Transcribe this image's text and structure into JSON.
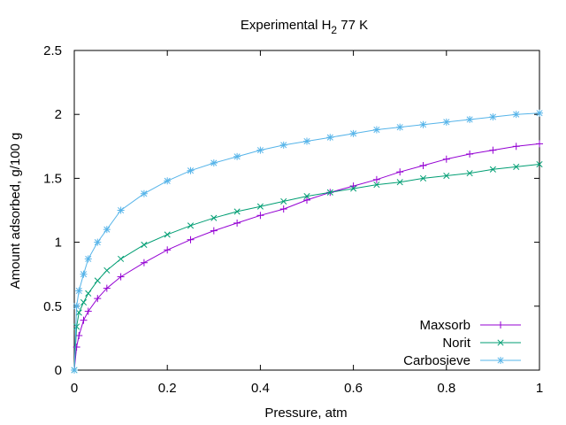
{
  "chart_data": {
    "type": "line",
    "title": "Experimental H",
    "title_sub": "2",
    "title_rest": " 77 K",
    "xlabel": "Pressure, atm",
    "ylabel": "Amount adsorbed, g/100 g",
    "xlim": [
      0,
      1
    ],
    "ylim": [
      0,
      2.5
    ],
    "xticks": [
      "0",
      "0.2",
      "0.4",
      "0.6",
      "0.8",
      "1"
    ],
    "yticks": [
      "0",
      "0.5",
      "1",
      "1.5",
      "2",
      "2.5"
    ],
    "grid": false,
    "legend_position": "bottom-right",
    "series": [
      {
        "name": "Maxsorb",
        "color": "#9400d3",
        "marker": "plus",
        "x": [
          0.0,
          0.005,
          0.01,
          0.02,
          0.03,
          0.05,
          0.07,
          0.1,
          0.15,
          0.2,
          0.25,
          0.3,
          0.35,
          0.4,
          0.45,
          0.5,
          0.55,
          0.6,
          0.65,
          0.7,
          0.75,
          0.8,
          0.85,
          0.9,
          0.95,
          1.0
        ],
        "y": [
          0.0,
          0.18,
          0.27,
          0.39,
          0.46,
          0.56,
          0.64,
          0.73,
          0.84,
          0.94,
          1.02,
          1.09,
          1.15,
          1.21,
          1.26,
          1.33,
          1.39,
          1.44,
          1.49,
          1.55,
          1.6,
          1.65,
          1.69,
          1.72,
          1.75,
          1.77
        ]
      },
      {
        "name": "Norit",
        "color": "#009e73",
        "marker": "cross",
        "x": [
          0.0,
          0.005,
          0.01,
          0.02,
          0.03,
          0.05,
          0.07,
          0.1,
          0.15,
          0.2,
          0.25,
          0.3,
          0.35,
          0.4,
          0.45,
          0.5,
          0.55,
          0.6,
          0.65,
          0.7,
          0.75,
          0.8,
          0.85,
          0.9,
          0.95,
          1.0
        ],
        "y": [
          0.0,
          0.34,
          0.45,
          0.53,
          0.6,
          0.7,
          0.78,
          0.87,
          0.98,
          1.06,
          1.13,
          1.19,
          1.24,
          1.28,
          1.32,
          1.36,
          1.39,
          1.42,
          1.45,
          1.47,
          1.5,
          1.52,
          1.54,
          1.57,
          1.59,
          1.61
        ]
      },
      {
        "name": "Carbosieve",
        "color": "#56b4e9",
        "marker": "star",
        "x": [
          0.0,
          0.005,
          0.01,
          0.02,
          0.03,
          0.05,
          0.07,
          0.1,
          0.15,
          0.2,
          0.25,
          0.3,
          0.35,
          0.4,
          0.45,
          0.5,
          0.55,
          0.6,
          0.65,
          0.7,
          0.75,
          0.8,
          0.85,
          0.9,
          0.95,
          1.0
        ],
        "y": [
          0.0,
          0.5,
          0.62,
          0.75,
          0.87,
          1.0,
          1.1,
          1.25,
          1.38,
          1.48,
          1.56,
          1.62,
          1.67,
          1.72,
          1.76,
          1.79,
          1.82,
          1.85,
          1.88,
          1.9,
          1.92,
          1.94,
          1.96,
          1.98,
          2.0,
          2.01
        ]
      }
    ]
  }
}
